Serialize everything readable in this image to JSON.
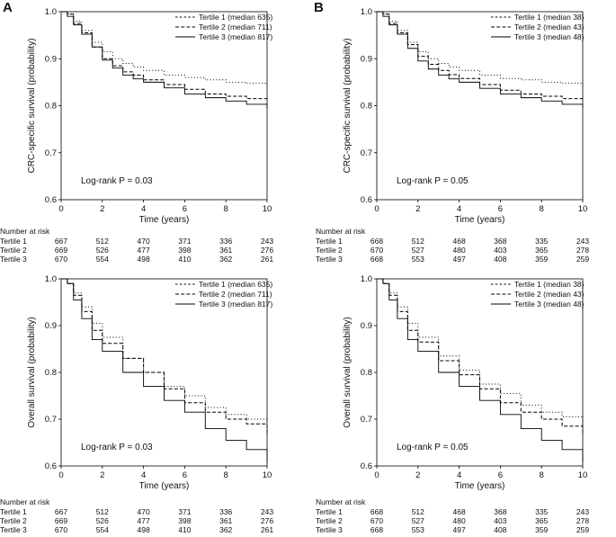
{
  "panel_letters": [
    "A",
    "B"
  ],
  "chart_data": [
    {
      "type": "line",
      "panel": "A",
      "ylabel": "CRC-specific survival (probability)",
      "xlabel": "Time (years)",
      "xlim": [
        0,
        10
      ],
      "ylim": [
        0.6,
        1.0
      ],
      "xticks": [
        0,
        2,
        4,
        6,
        8,
        10
      ],
      "yticks": [
        0.6,
        0.7,
        0.8,
        0.9,
        1.0
      ],
      "annotation": "Log-rank P = 0.03",
      "series": [
        {
          "name": "Tertile 1 (median 635)",
          "style": "dotted",
          "x": [
            0,
            0.3,
            0.6,
            1,
            1.5,
            2,
            2.5,
            3,
            3.5,
            4,
            5,
            6,
            7,
            8,
            9,
            10
          ],
          "y": [
            1.0,
            0.995,
            0.98,
            0.96,
            0.935,
            0.915,
            0.9,
            0.89,
            0.882,
            0.875,
            0.865,
            0.86,
            0.855,
            0.85,
            0.848,
            0.843
          ]
        },
        {
          "name": "Tertile 2 (median 711)",
          "style": "dashed",
          "x": [
            0,
            0.3,
            0.6,
            1,
            1.5,
            2,
            2.5,
            3,
            3.5,
            4,
            5,
            6,
            7,
            8,
            9,
            10
          ],
          "y": [
            1.0,
            0.995,
            0.975,
            0.955,
            0.925,
            0.9,
            0.885,
            0.872,
            0.865,
            0.855,
            0.845,
            0.835,
            0.825,
            0.82,
            0.815,
            0.813
          ]
        },
        {
          "name": "Tertile 3 (median 817)",
          "style": "solid",
          "x": [
            0,
            0.3,
            0.6,
            1,
            1.5,
            2,
            2.5,
            3,
            3.5,
            4,
            5,
            6,
            7,
            8,
            9,
            10
          ],
          "y": [
            1.0,
            0.99,
            0.972,
            0.952,
            0.925,
            0.897,
            0.88,
            0.865,
            0.857,
            0.85,
            0.838,
            0.825,
            0.817,
            0.81,
            0.803,
            0.795
          ]
        }
      ],
      "risk_table": {
        "title": "Number at risk",
        "rows": [
          {
            "label": "Tertile 1",
            "values": [
              "667",
              "512",
              "470",
              "371",
              "336",
              "243"
            ]
          },
          {
            "label": "Tertile 2",
            "values": [
              "669",
              "526",
              "477",
              "398",
              "361",
              "276"
            ]
          },
          {
            "label": "Tertile 3",
            "values": [
              "670",
              "554",
              "498",
              "410",
              "362",
              "261"
            ]
          }
        ]
      }
    },
    {
      "type": "line",
      "panel": "B",
      "ylabel": "CRC-specific survival (probability)",
      "xlabel": "Time (years)",
      "xlim": [
        0,
        10
      ],
      "ylim": [
        0.6,
        1.0
      ],
      "xticks": [
        0,
        2,
        4,
        6,
        8,
        10
      ],
      "yticks": [
        0.6,
        0.7,
        0.8,
        0.9,
        1.0
      ],
      "annotation": "Log-rank P = 0.05",
      "series": [
        {
          "name": "Tertile 1 (median 38)",
          "style": "dotted",
          "x": [
            0,
            0.3,
            0.6,
            1,
            1.5,
            2,
            2.5,
            3,
            3.5,
            4,
            5,
            6,
            7,
            8,
            9,
            10
          ],
          "y": [
            1.0,
            0.995,
            0.98,
            0.96,
            0.935,
            0.915,
            0.9,
            0.89,
            0.882,
            0.875,
            0.865,
            0.858,
            0.855,
            0.85,
            0.848,
            0.842
          ]
        },
        {
          "name": "Tertile 2 (median 43)",
          "style": "dashed",
          "x": [
            0,
            0.3,
            0.6,
            1,
            1.5,
            2,
            2.5,
            3,
            3.5,
            4,
            5,
            6,
            7,
            8,
            9,
            10
          ],
          "y": [
            1.0,
            0.995,
            0.975,
            0.955,
            0.93,
            0.905,
            0.888,
            0.875,
            0.866,
            0.858,
            0.845,
            0.833,
            0.825,
            0.82,
            0.815,
            0.813
          ]
        },
        {
          "name": "Tertile 3 (median 48)",
          "style": "solid",
          "x": [
            0,
            0.3,
            0.6,
            1,
            1.5,
            2,
            2.5,
            3,
            3.5,
            4,
            5,
            6,
            7,
            8,
            9,
            10
          ],
          "y": [
            1.0,
            0.99,
            0.972,
            0.952,
            0.922,
            0.895,
            0.878,
            0.865,
            0.857,
            0.85,
            0.837,
            0.825,
            0.817,
            0.81,
            0.803,
            0.797
          ]
        }
      ],
      "risk_table": {
        "title": "Number at risk",
        "rows": [
          {
            "label": "Tertile 1",
            "values": [
              "668",
              "512",
              "468",
              "368",
              "335",
              "243"
            ]
          },
          {
            "label": "Tertile 2",
            "values": [
              "670",
              "527",
              "480",
              "403",
              "365",
              "278"
            ]
          },
          {
            "label": "Tertile 3",
            "values": [
              "668",
              "553",
              "497",
              "408",
              "359",
              "259"
            ]
          }
        ]
      }
    },
    {
      "type": "line",
      "panel": "A",
      "ylabel": "Overall survival (probability)",
      "xlabel": "Time (years)",
      "xlim": [
        0,
        10
      ],
      "ylim": [
        0.6,
        1.0
      ],
      "xticks": [
        0,
        2,
        4,
        6,
        8,
        10
      ],
      "yticks": [
        0.6,
        0.7,
        0.8,
        0.9,
        1.0
      ],
      "annotation": "Log-rank P = 0.03",
      "series": [
        {
          "name": "Tertile 1 (median 635)",
          "style": "dotted",
          "x": [
            0,
            0.3,
            0.6,
            1,
            1.5,
            2,
            3,
            4,
            5,
            6,
            7,
            8,
            9,
            10
          ],
          "y": [
            1.0,
            0.99,
            0.97,
            0.94,
            0.905,
            0.875,
            0.83,
            0.8,
            0.77,
            0.75,
            0.725,
            0.71,
            0.7,
            0.685
          ]
        },
        {
          "name": "Tertile 2 (median 711)",
          "style": "dashed",
          "x": [
            0,
            0.3,
            0.6,
            1,
            1.5,
            2,
            3,
            4,
            5,
            6,
            7,
            8,
            9,
            10
          ],
          "y": [
            1.0,
            0.99,
            0.965,
            0.93,
            0.89,
            0.862,
            0.83,
            0.8,
            0.765,
            0.735,
            0.715,
            0.7,
            0.69,
            0.668
          ]
        },
        {
          "name": "Tertile 3 (median 817)",
          "style": "solid",
          "x": [
            0,
            0.3,
            0.6,
            1,
            1.5,
            2,
            3,
            4,
            5,
            6,
            7,
            8,
            9,
            10
          ],
          "y": [
            1.0,
            0.99,
            0.955,
            0.915,
            0.87,
            0.845,
            0.8,
            0.77,
            0.74,
            0.715,
            0.68,
            0.655,
            0.635,
            0.607
          ]
        }
      ],
      "risk_table": {
        "title": "Number at risk",
        "rows": [
          {
            "label": "Tertile 1",
            "values": [
              "667",
              "512",
              "470",
              "371",
              "336",
              "243"
            ]
          },
          {
            "label": "Tertile 2",
            "values": [
              "669",
              "526",
              "477",
              "398",
              "361",
              "276"
            ]
          },
          {
            "label": "Tertile 3",
            "values": [
              "670",
              "554",
              "498",
              "410",
              "362",
              "261"
            ]
          }
        ]
      }
    },
    {
      "type": "line",
      "panel": "B",
      "ylabel": "Overall survival (probability)",
      "xlabel": "Time (years)",
      "xlim": [
        0,
        10
      ],
      "ylim": [
        0.6,
        1.0
      ],
      "xticks": [
        0,
        2,
        4,
        6,
        8,
        10
      ],
      "yticks": [
        0.6,
        0.7,
        0.8,
        0.9,
        1.0
      ],
      "annotation": "Log-rank P = 0.05",
      "series": [
        {
          "name": "Tertile 1 (median 38)",
          "style": "dotted",
          "x": [
            0,
            0.3,
            0.6,
            1,
            1.5,
            2,
            3,
            4,
            5,
            6,
            7,
            8,
            9,
            10
          ],
          "y": [
            1.0,
            0.99,
            0.97,
            0.94,
            0.905,
            0.875,
            0.835,
            0.805,
            0.775,
            0.755,
            0.73,
            0.715,
            0.705,
            0.685
          ]
        },
        {
          "name": "Tertile 2 (median 43)",
          "style": "dashed",
          "x": [
            0,
            0.3,
            0.6,
            1,
            1.5,
            2,
            3,
            4,
            5,
            6,
            7,
            8,
            9,
            10
          ],
          "y": [
            1.0,
            0.99,
            0.965,
            0.93,
            0.89,
            0.865,
            0.825,
            0.795,
            0.765,
            0.735,
            0.715,
            0.7,
            0.685,
            0.665
          ]
        },
        {
          "name": "Tertile 3 (median 48)",
          "style": "solid",
          "x": [
            0,
            0.3,
            0.6,
            1,
            1.5,
            2,
            3,
            4,
            5,
            6,
            7,
            8,
            9,
            10
          ],
          "y": [
            1.0,
            0.99,
            0.955,
            0.915,
            0.87,
            0.845,
            0.8,
            0.77,
            0.74,
            0.71,
            0.68,
            0.655,
            0.635,
            0.608
          ]
        }
      ],
      "risk_table": {
        "title": "Number at risk",
        "rows": [
          {
            "label": "Tertile 1",
            "values": [
              "668",
              "512",
              "468",
              "368",
              "335",
              "243"
            ]
          },
          {
            "label": "Tertile 2",
            "values": [
              "670",
              "527",
              "480",
              "403",
              "365",
              "278"
            ]
          },
          {
            "label": "Tertile 3",
            "values": [
              "668",
              "553",
              "497",
              "408",
              "359",
              "259"
            ]
          }
        ]
      }
    }
  ]
}
